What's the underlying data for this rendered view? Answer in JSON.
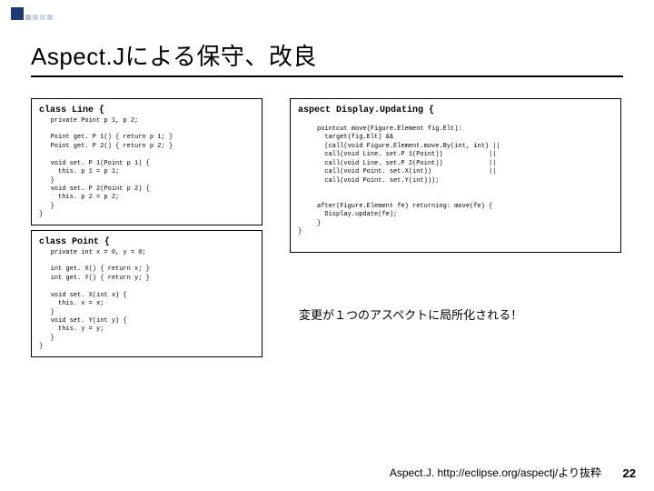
{
  "title": "Aspect.Jによる保守、改良",
  "code_line_header_kw": "class",
  "code_line_header_name": " Line {",
  "code_line_body": "   private Point p 1, p 2;\n\n   Point get. P 1() { return p 1; }\n   Point get. P 2() { return p 2; }\n\n   void set. P 1(Point p 1) {\n     this. p 1 = p 1;\n   }\n   void set. P 2(Point p 2) {\n     this. p 2 = p 2;\n   }\n}",
  "code_point_header_kw": "class",
  "code_point_header_name": " Point {",
  "code_point_body": "   private int x = 0, y = 0;\n\n   int get. X() { return x; }\n   int get. Y() { return y; }\n\n   void set. X(int x) {\n     this. x = x;\n   }\n   void set. Y(int y) {\n     this. y = y;\n   }\n}",
  "code_aspect_header_kw": "aspect",
  "code_aspect_header_name": " Display.Updating {",
  "code_aspect_body": "\n     pointcut move(Figure.Element fig.Elt):\n       target(fig.Elt) &&\n       (call(void Figure.Element.move.By(int, int) ||\n       call(void Line. set.P 1(Point))            ||\n       call(void Line. set.P 2(Point))            ||\n       call(void Point. set.X(int))               ||\n       call(void Point. set.Y(int)));\n\n\n     after(Figure.Element fe) returning: move(fe) {\n       Display.update(fe);\n     }\n}",
  "note": "変更が１つのアスペクトに局所化される！",
  "citation": "Aspect.J. http://eclipse.org/aspectj/より抜粋",
  "page_number": "22"
}
